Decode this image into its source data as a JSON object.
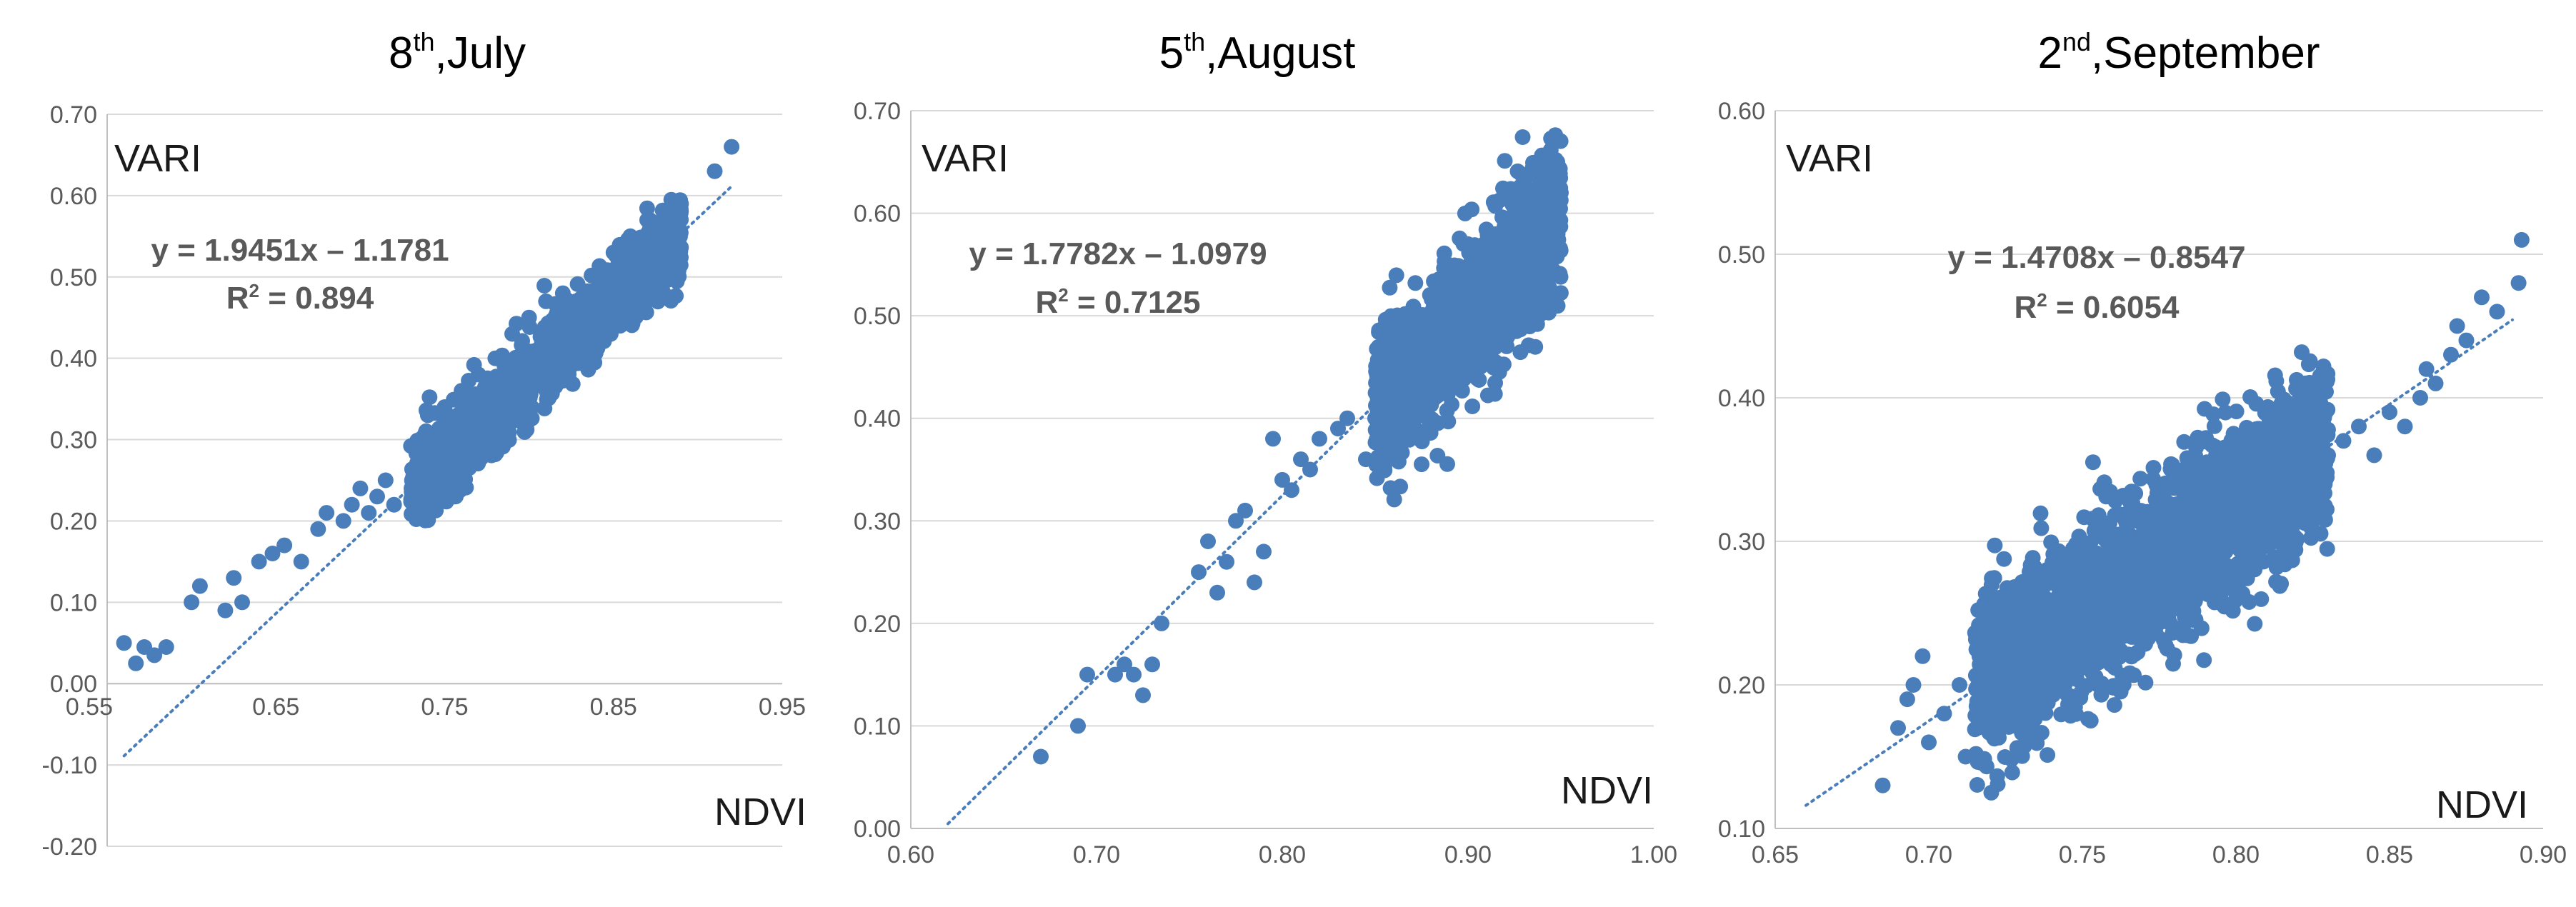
{
  "colors": {
    "point": "#4a7ebb",
    "trend": "#4a7ebb",
    "grid": "#d9d9d9",
    "tick_text": "#5a5a5a"
  },
  "chart_data": [
    {
      "type": "scatter",
      "title_main": "8",
      "title_sup": "th",
      "title_rest": ",July",
      "ylabel": "VARI",
      "xlabel": "NDVI",
      "xlim": [
        0.55,
        0.95
      ],
      "ylim": [
        -0.2,
        0.7
      ],
      "x_ticks": [
        "0.55",
        "0.65",
        "0.75",
        "0.85",
        "0.95"
      ],
      "y_ticks": [
        "-0.20",
        "-0.10",
        "0.00",
        "0.10",
        "0.20",
        "0.30",
        "0.40",
        "0.50",
        "0.60",
        "0.70"
      ],
      "grid": "horizontal",
      "axes_cross_at_zero": true,
      "trendline": {
        "slope": 1.9451,
        "intercept": -1.1781,
        "x_from": 0.56,
        "x_to": 0.92
      },
      "equation": "y = 1.9451x – 1.1781",
      "r2_prefix": "R",
      "r2_sup": "2",
      "r2_rest": " = 0.894",
      "cluster": {
        "n": 1500,
        "x_min": 0.73,
        "x_max": 0.89,
        "spread": 0.025,
        "seed": 11
      },
      "points": [
        [
          0.56,
          0.05
        ],
        [
          0.567,
          0.025
        ],
        [
          0.572,
          0.045
        ],
        [
          0.578,
          0.035
        ],
        [
          0.585,
          0.045
        ],
        [
          0.6,
          0.1
        ],
        [
          0.605,
          0.12
        ],
        [
          0.62,
          0.09
        ],
        [
          0.625,
          0.13
        ],
        [
          0.63,
          0.1
        ],
        [
          0.64,
          0.15
        ],
        [
          0.648,
          0.16
        ],
        [
          0.655,
          0.17
        ],
        [
          0.665,
          0.15
        ],
        [
          0.675,
          0.19
        ],
        [
          0.68,
          0.21
        ],
        [
          0.69,
          0.2
        ],
        [
          0.695,
          0.22
        ],
        [
          0.7,
          0.24
        ],
        [
          0.705,
          0.21
        ],
        [
          0.71,
          0.23
        ],
        [
          0.715,
          0.25
        ],
        [
          0.72,
          0.22
        ],
        [
          0.74,
          0.33
        ],
        [
          0.75,
          0.34
        ],
        [
          0.76,
          0.36
        ],
        [
          0.77,
          0.38
        ],
        [
          0.78,
          0.4
        ],
        [
          0.79,
          0.43
        ],
        [
          0.8,
          0.45
        ],
        [
          0.81,
          0.47
        ],
        [
          0.82,
          0.48
        ],
        [
          0.84,
          0.5
        ],
        [
          0.85,
          0.53
        ],
        [
          0.86,
          0.55
        ],
        [
          0.87,
          0.57
        ],
        [
          0.88,
          0.58
        ],
        [
          0.89,
          0.59
        ],
        [
          0.91,
          0.63
        ],
        [
          0.92,
          0.66
        ]
      ]
    },
    {
      "type": "scatter",
      "title_main": "5",
      "title_sup": "th",
      "title_rest": ",August",
      "ylabel": "VARI",
      "xlabel": "NDVI",
      "xlim": [
        0.6,
        1.0
      ],
      "ylim": [
        0.0,
        0.7
      ],
      "x_ticks": [
        "0.60",
        "0.70",
        "0.80",
        "0.90",
        "1.00"
      ],
      "y_ticks": [
        "0.00",
        "0.10",
        "0.20",
        "0.30",
        "0.40",
        "0.50",
        "0.60",
        "0.70"
      ],
      "grid": "horizontal",
      "axes_cross_at_zero": false,
      "trendline": {
        "slope": 1.7782,
        "intercept": -1.0979,
        "x_from": 0.62,
        "x_to": 0.95
      },
      "equation": "y = 1.7782x – 1.0979",
      "r2_prefix": "R",
      "r2_sup": "2",
      "r2_rest": " = 0.7125",
      "cluster": {
        "n": 1500,
        "x_min": 0.85,
        "x_max": 0.95,
        "spread": 0.035,
        "seed": 23
      },
      "points": [
        [
          0.67,
          0.07
        ],
        [
          0.69,
          0.1
        ],
        [
          0.695,
          0.15
        ],
        [
          0.71,
          0.15
        ],
        [
          0.715,
          0.16
        ],
        [
          0.72,
          0.15
        ],
        [
          0.725,
          0.13
        ],
        [
          0.73,
          0.16
        ],
        [
          0.735,
          0.2
        ],
        [
          0.755,
          0.25
        ],
        [
          0.76,
          0.28
        ],
        [
          0.765,
          0.23
        ],
        [
          0.77,
          0.26
        ],
        [
          0.775,
          0.3
        ],
        [
          0.78,
          0.31
        ],
        [
          0.785,
          0.24
        ],
        [
          0.79,
          0.27
        ],
        [
          0.795,
          0.38
        ],
        [
          0.8,
          0.34
        ],
        [
          0.805,
          0.33
        ],
        [
          0.81,
          0.36
        ],
        [
          0.815,
          0.35
        ],
        [
          0.82,
          0.38
        ],
        [
          0.83,
          0.39
        ],
        [
          0.835,
          0.4
        ],
        [
          0.845,
          0.36
        ],
        [
          0.85,
          0.4
        ],
        [
          0.86,
          0.38
        ],
        [
          0.93,
          0.63
        ],
        [
          0.95,
          0.62
        ],
        [
          0.945,
          0.6
        ]
      ]
    },
    {
      "type": "scatter",
      "title_main": "2",
      "title_sup": "nd",
      "title_rest": ",September",
      "ylabel": "VARI",
      "xlabel": "NDVI",
      "xlim": [
        0.65,
        0.9
      ],
      "ylim": [
        0.1,
        0.6
      ],
      "x_ticks": [
        "0.65",
        "0.70",
        "0.75",
        "0.80",
        "0.85",
        "0.90"
      ],
      "y_ticks": [
        "0.10",
        "0.20",
        "0.30",
        "0.40",
        "0.50",
        "0.60"
      ],
      "grid": "horizontal",
      "axes_cross_at_zero": false,
      "trendline": {
        "slope": 1.4708,
        "intercept": -0.8547,
        "x_from": 0.66,
        "x_to": 0.89
      },
      "equation": "y = 1.4708x – 0.8547",
      "r2_prefix": "R",
      "r2_sup": "2",
      "r2_rest": " = 0.6054",
      "cluster": {
        "n": 2200,
        "x_min": 0.715,
        "x_max": 0.83,
        "spread": 0.03,
        "seed": 37
      },
      "points": [
        [
          0.685,
          0.13
        ],
        [
          0.69,
          0.17
        ],
        [
          0.693,
          0.19
        ],
        [
          0.695,
          0.2
        ],
        [
          0.698,
          0.22
        ],
        [
          0.7,
          0.16
        ],
        [
          0.705,
          0.18
        ],
        [
          0.71,
          0.2
        ],
        [
          0.712,
          0.15
        ],
        [
          0.825,
          0.35
        ],
        [
          0.83,
          0.36
        ],
        [
          0.835,
          0.37
        ],
        [
          0.84,
          0.38
        ],
        [
          0.845,
          0.36
        ],
        [
          0.85,
          0.39
        ],
        [
          0.855,
          0.38
        ],
        [
          0.86,
          0.4
        ],
        [
          0.862,
          0.42
        ],
        [
          0.865,
          0.41
        ],
        [
          0.87,
          0.43
        ],
        [
          0.872,
          0.45
        ],
        [
          0.875,
          0.44
        ],
        [
          0.88,
          0.47
        ],
        [
          0.885,
          0.46
        ],
        [
          0.892,
          0.48
        ],
        [
          0.893,
          0.51
        ]
      ]
    }
  ]
}
